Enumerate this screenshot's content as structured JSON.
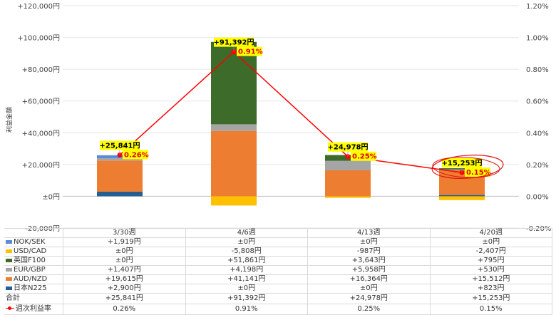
{
  "chart_data": {
    "type": "bar",
    "stacked": true,
    "ylabel": "利益金額",
    "ylim": [
      -20000,
      120000
    ],
    "y2lim": [
      -0.2,
      1.2
    ],
    "y_ticks": [
      "-20,000円",
      "±0円",
      "+20,000円",
      "+40,000円",
      "+60,000円",
      "+80,000円",
      "+100,000円",
      "+120,000円"
    ],
    "y2_ticks": [
      "-0.20%",
      "0.00%",
      "0.20%",
      "0.40%",
      "0.60%",
      "0.80%",
      "1.00%",
      "1.20%"
    ],
    "categories": [
      "3/30週",
      "4/6週",
      "4/13週",
      "4/20週"
    ],
    "series": [
      {
        "name": "NOK/SEK",
        "color": "#5b8bd6",
        "values": [
          1919,
          0,
          0,
          0
        ],
        "labels": [
          "+1,919円",
          "±0円",
          "±0円",
          "±0円"
        ]
      },
      {
        "name": "USD/CAD",
        "color": "#ffc000",
        "values": [
          0,
          -5808,
          -987,
          -2407
        ],
        "labels": [
          "±0円",
          "-5,808円",
          "-987円",
          "-2,407円"
        ]
      },
      {
        "name": "英国F100",
        "color": "#3d6b2a",
        "values": [
          0,
          51861,
          3643,
          795
        ],
        "labels": [
          "±0円",
          "+51,861円",
          "+3,643円",
          "+795円"
        ]
      },
      {
        "name": "EUR/GBP",
        "color": "#a5a5a5",
        "values": [
          1407,
          4198,
          5958,
          530
        ],
        "labels": [
          "+1,407円",
          "+4,198円",
          "+5,958円",
          "+530円"
        ]
      },
      {
        "name": "AUD/NZD",
        "color": "#ed7d31",
        "values": [
          19615,
          41141,
          16364,
          15512
        ],
        "labels": [
          "+19,615円",
          "+41,141円",
          "+16,364円",
          "+15,512円"
        ]
      },
      {
        "name": "日本N225",
        "color": "#255e91",
        "values": [
          2900,
          0,
          0,
          823
        ],
        "labels": [
          "+2,900円",
          "±0円",
          "±0円",
          "+823円"
        ]
      }
    ],
    "totals": {
      "name": "合計",
      "values": [
        25841,
        91392,
        24978,
        15253
      ],
      "labels": [
        "+25,841円",
        "+91,392円",
        "+24,978円",
        "+15,253円"
      ]
    },
    "rate": {
      "name": "週次利益率",
      "color": "#ff0000",
      "values": [
        0.26,
        0.91,
        0.25,
        0.15
      ],
      "labels": [
        "0.26%",
        "0.91%",
        "0.25%",
        "0.15%"
      ]
    },
    "highlight_category": "4/20週"
  }
}
